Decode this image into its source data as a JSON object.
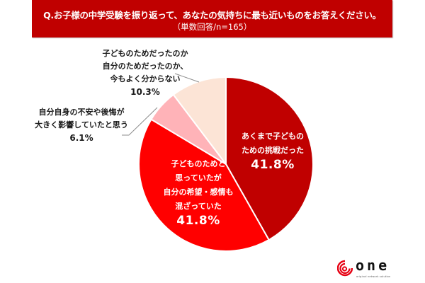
{
  "header": {
    "question": "Q.お子様の中学受験を振り返って、あなたの気持ちに最も近いものをお答えください。",
    "subtitle": "（単数回答/n=165）",
    "background_color": "#C00000"
  },
  "chart_data": {
    "type": "pie",
    "title": "Q.お子様の中学受験を振り返って、あなたの気持ちに最も近いものをお答えください。",
    "subtitle": "（単数回答/n=165）",
    "n": 165,
    "start_angle_deg": 0,
    "direction": "clockwise",
    "slices": [
      {
        "label": "あくまで子どものための挑戦だった",
        "label_lines": [
          "あくまで子どもの",
          "ための挑戦だった"
        ],
        "value": 41.8,
        "display": "41.8%",
        "color": "#C00000",
        "label_color": "#ffffff"
      },
      {
        "label": "子どものためと思っていたが自分の希望・感情も混ざっていた",
        "label_lines": [
          "子どものためと",
          "思っていたが",
          "自分の希望・感情も",
          "混ざっていた"
        ],
        "value": 41.8,
        "display": "41.8%",
        "color": "#FF0000",
        "label_color": "#ffffff"
      },
      {
        "label": "自分自身の不安や後悔が大きく影響していたと思う",
        "label_lines": [
          "自分自身の不安や後悔が",
          "大きく影響していたと思う"
        ],
        "value": 6.1,
        "display": "6.1%",
        "color": "#FFB3B8",
        "label_color": "#1a1a1a"
      },
      {
        "label": "子どものためだったのか自分のためだったのか、今もよく分からない",
        "label_lines": [
          "子どものためだったのか",
          "自分のためだったのか、",
          "今もよく分からない"
        ],
        "value": 10.3,
        "display": "10.3%",
        "color": "#FCE4D6",
        "label_color": "#1a1a1a"
      }
    ],
    "legend": "none (inline labels with leader lines)"
  },
  "logo": {
    "word": "one",
    "tagline": "original network solution",
    "icon": "red-swirl-icon",
    "color": "#E60012"
  }
}
